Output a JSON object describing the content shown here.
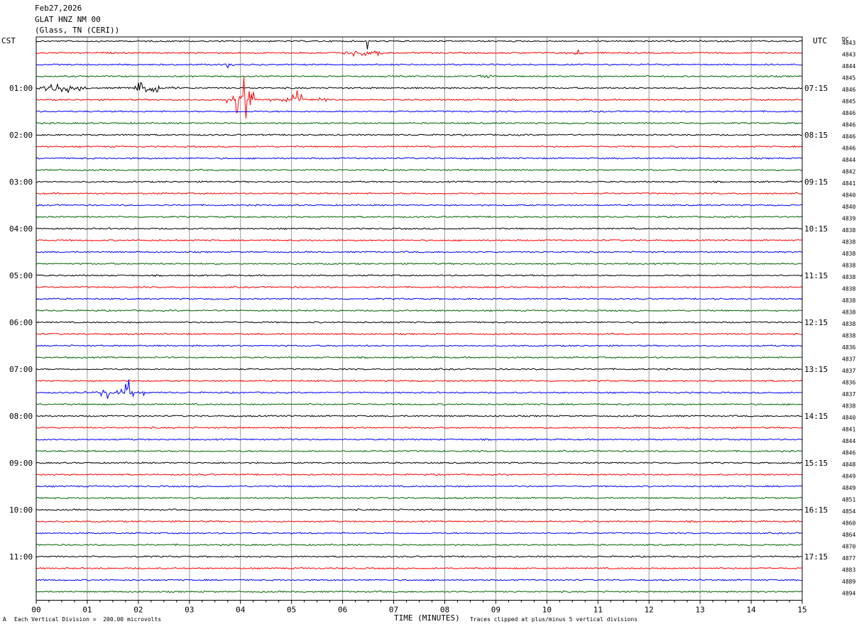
{
  "header": {
    "date": "Feb27,2026",
    "station": "GLAT HNZ NM 00",
    "location": "(Glass, TN (CERI))"
  },
  "left_tz": "CST",
  "right_tz": "UTC",
  "dc_label": "DC",
  "xaxis_title": "TIME (MINUTES)",
  "footer": {
    "scale_note": "Each Vertical Division =  200.00 microvolts",
    "clip_note": "Traces clipped at plus/minus 5 vertical divisions",
    "corner_mark": "A"
  },
  "colors": {
    "cycle": [
      "#000000",
      "#ff0000",
      "#0000ff",
      "#006400"
    ],
    "grid": "#999999",
    "frame": "#000000"
  },
  "chart_data": {
    "type": "line",
    "xlabel": "TIME (MINUTES)",
    "xlim": [
      0,
      15
    ],
    "x_ticks": [
      "00",
      "01",
      "02",
      "03",
      "04",
      "05",
      "06",
      "07",
      "08",
      "09",
      "10",
      "11",
      "12",
      "13",
      "14",
      "15"
    ],
    "trace_count": 48,
    "minutes_per_trace": 15,
    "left_time_labels": [
      {
        "trace": 4,
        "label": "01:00"
      },
      {
        "trace": 8,
        "label": "02:00"
      },
      {
        "trace": 12,
        "label": "03:00"
      },
      {
        "trace": 16,
        "label": "04:00"
      },
      {
        "trace": 20,
        "label": "05:00"
      },
      {
        "trace": 24,
        "label": "06:00"
      },
      {
        "trace": 28,
        "label": "07:00"
      },
      {
        "trace": 32,
        "label": "08:00"
      },
      {
        "trace": 36,
        "label": "09:00"
      },
      {
        "trace": 40,
        "label": "10:00"
      },
      {
        "trace": 44,
        "label": "11:00"
      }
    ],
    "right_time_labels": [
      {
        "trace": 4,
        "label": "07:15"
      },
      {
        "trace": 8,
        "label": "08:15"
      },
      {
        "trace": 12,
        "label": "09:15"
      },
      {
        "trace": 16,
        "label": "10:15"
      },
      {
        "trace": 20,
        "label": "11:15"
      },
      {
        "trace": 24,
        "label": "12:15"
      },
      {
        "trace": 28,
        "label": "13:15"
      },
      {
        "trace": 32,
        "label": "14:15"
      },
      {
        "trace": 36,
        "label": "15:15"
      },
      {
        "trace": 40,
        "label": "16:15"
      },
      {
        "trace": 44,
        "label": "17:15"
      }
    ],
    "dc_values": [
      "4843",
      "4843",
      "4844",
      "4845",
      "4846",
      "4845",
      "4846",
      "4846",
      "4846",
      "4846",
      "4844",
      "4842",
      "4841",
      "4840",
      "4840",
      "4839",
      "4838",
      "4838",
      "4838",
      "4838",
      "4838",
      "4838",
      "4838",
      "4838",
      "4838",
      "4838",
      "4836",
      "4837",
      "4837",
      "4836",
      "4837",
      "4838",
      "4840",
      "4841",
      "4844",
      "4846",
      "4848",
      "4849",
      "4849",
      "4851",
      "4854",
      "4860",
      "4864",
      "4870",
      "4877",
      "4883",
      "4889",
      "4894"
    ],
    "events": [
      {
        "trace": 0,
        "x": [
          6.45,
          6.5
        ],
        "amplitude": 1.5,
        "noise": 0.05
      },
      {
        "trace": 1,
        "x": [
          5.9,
          6.8
        ],
        "amplitude": 1.2,
        "noise": 0.25
      },
      {
        "trace": 1,
        "x": [
          10.3,
          10.9
        ],
        "amplitude": 0.5,
        "noise": 0.3
      },
      {
        "trace": 2,
        "x": [
          3.6,
          3.9
        ],
        "amplitude": 0.4,
        "noise": 0.25
      },
      {
        "trace": 3,
        "x": [
          8.6,
          9.0
        ],
        "amplitude": 0.6,
        "noise": 0.3
      },
      {
        "trace": 3,
        "x": [
          14.0,
          14.3
        ],
        "amplitude": 0.4,
        "noise": 0.3
      },
      {
        "trace": 4,
        "x": [
          0.0,
          1.1
        ],
        "amplitude": 0.8,
        "noise": 0.5
      },
      {
        "trace": 4,
        "x": [
          1.6,
          2.8
        ],
        "amplitude": 0.8,
        "noise": 0.5
      },
      {
        "trace": 5,
        "x": [
          3.7,
          4.4
        ],
        "amplitude": 2.8,
        "noise": 0.45
      },
      {
        "trace": 5,
        "x": [
          4.4,
          5.8
        ],
        "amplitude": 0.9,
        "noise": 0.35
      },
      {
        "trace": 30,
        "x": [
          0.9,
          2.4
        ],
        "amplitude": 1.0,
        "noise": 0.1
      },
      {
        "trace": 30,
        "x": [
          1.74,
          1.84
        ],
        "amplitude": 4.5,
        "noise": 0.1
      }
    ]
  }
}
